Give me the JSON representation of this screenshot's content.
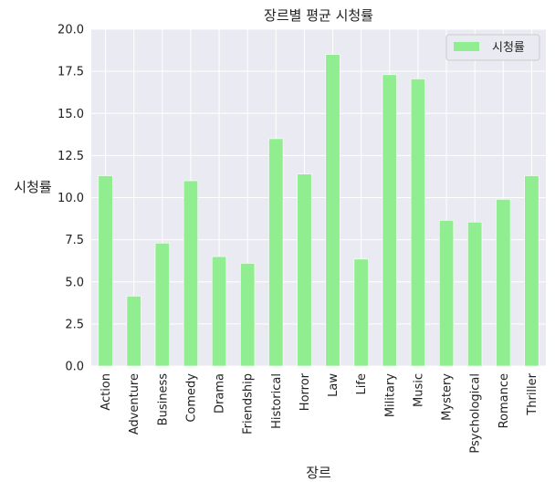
{
  "chart_data": {
    "type": "bar",
    "title": "장르별 평균 시청률",
    "xlabel": "장르",
    "ylabel": "시청률",
    "categories": [
      "Action",
      "Adventure",
      "Business",
      "Comedy",
      "Drama",
      "Friendship",
      "Historical",
      "Horror",
      "Law",
      "Life",
      "Military",
      "Music",
      "Mystery",
      "Psychological",
      "Romance",
      "Thriller"
    ],
    "series": [
      {
        "name": "시청률",
        "values": [
          11.3,
          4.15,
          7.3,
          11.0,
          6.5,
          6.1,
          13.5,
          11.4,
          18.5,
          6.35,
          17.3,
          17.05,
          8.65,
          8.55,
          9.9,
          11.3
        ]
      }
    ],
    "ylim": [
      0,
      20
    ],
    "yticks": [
      "0.0",
      "2.5",
      "5.0",
      "7.5",
      "10.0",
      "12.5",
      "15.0",
      "17.5",
      "20.0"
    ],
    "grid": true,
    "legend": "top-right",
    "colors": {
      "bar": "#90ee90",
      "plot_bg": "#eaeaf2",
      "grid": "#ffffff"
    }
  }
}
